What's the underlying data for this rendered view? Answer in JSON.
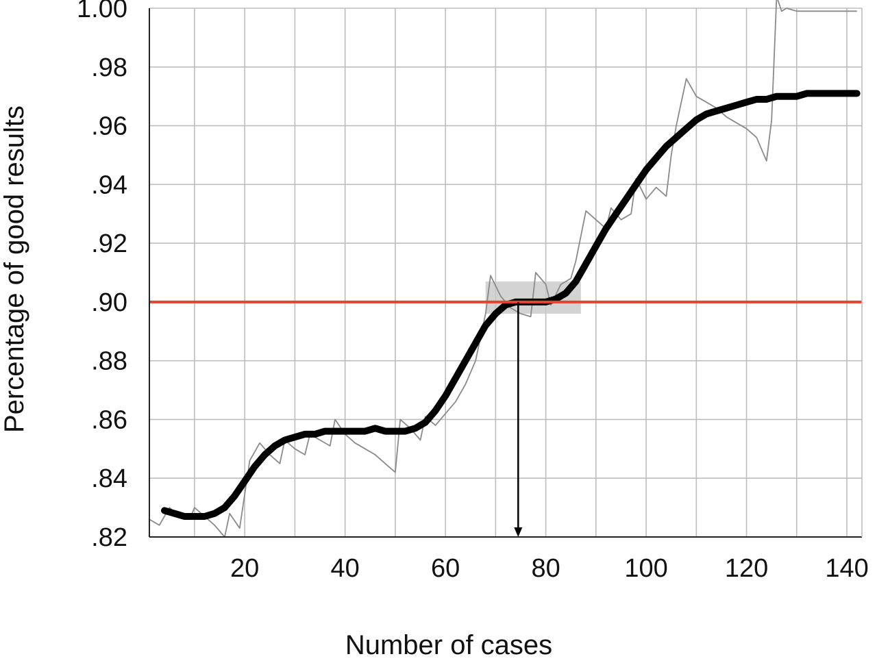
{
  "chart_data": {
    "type": "line",
    "title": "",
    "xlabel": "Number of cases",
    "ylabel": "Percentage of good results",
    "xlim": [
      1,
      143
    ],
    "ylim": [
      0.82,
      1.0
    ],
    "x_ticks": [
      20,
      40,
      60,
      80,
      100,
      120,
      140
    ],
    "x_tick_labels": [
      "20",
      "40",
      "60",
      "80",
      "100",
      "120",
      "140"
    ],
    "y_ticks": [
      0.82,
      0.84,
      0.86,
      0.88,
      0.9,
      0.92,
      0.94,
      0.96,
      0.98,
      1.0
    ],
    "y_tick_labels": [
      ".82",
      ".84",
      ".86",
      ".88",
      ".90",
      ".92",
      ".94",
      ".96",
      ".98",
      "1.00"
    ],
    "x_grid_step": 10,
    "y_grid_step": 0.02,
    "grid": true,
    "reference_line": {
      "y": 0.9,
      "color": "#e8432e"
    },
    "highlight_box": {
      "x": [
        68,
        87
      ],
      "y": [
        0.896,
        0.907
      ],
      "color": "#c8c8c8"
    },
    "marker_arrow": {
      "x": 74.5,
      "y_from": 0.9,
      "y_to": 0.82
    },
    "series": [
      {
        "style": "smoothed",
        "color": "#000000",
        "x": [
          4,
          6,
          8,
          10,
          12,
          14,
          16,
          18,
          20,
          22,
          24,
          26,
          28,
          30,
          32,
          34,
          36,
          38,
          40,
          42,
          44,
          46,
          48,
          50,
          52,
          54,
          56,
          58,
          60,
          62,
          64,
          66,
          68,
          70,
          72,
          74,
          76,
          78,
          80,
          82,
          84,
          86,
          88,
          90,
          92,
          94,
          96,
          98,
          100,
          102,
          104,
          106,
          108,
          110,
          112,
          114,
          116,
          118,
          120,
          122,
          124,
          126,
          128,
          130,
          132,
          134,
          136,
          138,
          140,
          142
        ],
        "y": [
          0.829,
          0.828,
          0.827,
          0.827,
          0.827,
          0.828,
          0.83,
          0.834,
          0.839,
          0.844,
          0.848,
          0.851,
          0.853,
          0.854,
          0.855,
          0.855,
          0.856,
          0.856,
          0.856,
          0.856,
          0.856,
          0.857,
          0.856,
          0.856,
          0.856,
          0.857,
          0.859,
          0.863,
          0.868,
          0.874,
          0.88,
          0.886,
          0.892,
          0.896,
          0.899,
          0.9,
          0.9,
          0.9,
          0.9,
          0.901,
          0.903,
          0.907,
          0.913,
          0.919,
          0.925,
          0.93,
          0.935,
          0.94,
          0.945,
          0.949,
          0.953,
          0.956,
          0.959,
          0.962,
          0.964,
          0.965,
          0.966,
          0.967,
          0.968,
          0.969,
          0.969,
          0.97,
          0.97,
          0.97,
          0.971,
          0.971,
          0.971,
          0.971,
          0.971,
          0.971
        ]
      },
      {
        "style": "raw",
        "color": "#8a8a8a",
        "x": [
          1,
          3,
          5,
          7,
          9,
          10,
          12,
          14,
          16,
          17,
          19,
          21,
          23,
          25,
          27,
          28,
          30,
          32,
          33,
          35,
          37,
          38,
          40,
          42,
          44,
          46,
          48,
          50,
          51,
          53,
          55,
          56,
          58,
          60,
          62,
          64,
          66,
          68,
          69,
          71,
          73,
          75,
          77,
          78,
          80,
          81,
          83,
          85,
          86,
          88,
          90,
          92,
          93,
          95,
          97,
          98,
          100,
          102,
          104,
          105,
          106,
          108,
          110,
          112,
          114,
          116,
          118,
          120,
          122,
          124,
          125,
          126,
          127,
          128,
          130,
          133,
          136,
          139,
          142
        ],
        "y": [
          0.826,
          0.824,
          0.83,
          0.827,
          0.826,
          0.83,
          0.827,
          0.824,
          0.82,
          0.828,
          0.823,
          0.846,
          0.852,
          0.848,
          0.845,
          0.853,
          0.85,
          0.848,
          0.855,
          0.853,
          0.851,
          0.86,
          0.855,
          0.852,
          0.85,
          0.848,
          0.845,
          0.842,
          0.86,
          0.857,
          0.853,
          0.861,
          0.858,
          0.862,
          0.866,
          0.872,
          0.88,
          0.896,
          0.909,
          0.902,
          0.898,
          0.896,
          0.895,
          0.91,
          0.906,
          0.899,
          0.906,
          0.908,
          0.914,
          0.931,
          0.928,
          0.925,
          0.932,
          0.928,
          0.93,
          0.942,
          0.935,
          0.939,
          0.936,
          0.95,
          0.96,
          0.976,
          0.97,
          0.968,
          0.966,
          0.963,
          0.961,
          0.959,
          0.956,
          0.948,
          0.962,
          1.004,
          0.999,
          1.0,
          0.999,
          0.999,
          0.999,
          0.999,
          0.999
        ]
      }
    ]
  }
}
